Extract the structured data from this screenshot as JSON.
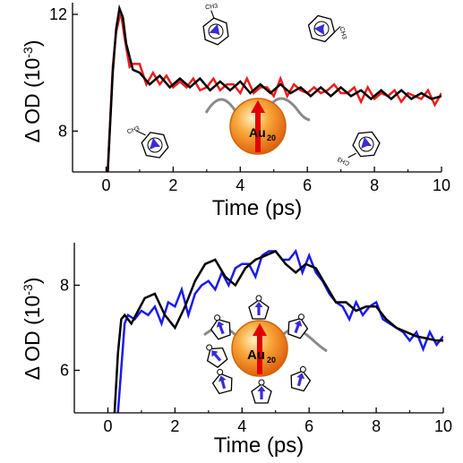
{
  "chart_data": [
    {
      "type": "line",
      "xlabel": "Time (ps)",
      "ylabel": "Δ OD (10",
      "ylabel_exp": "-3",
      "ylabel_close": ")",
      "xlim": [
        -1,
        10
      ],
      "ylim": [
        6.6,
        12.4
      ],
      "xticks": [
        0,
        2,
        4,
        6,
        8,
        10
      ],
      "yticks": [
        8,
        12
      ],
      "grid": false,
      "series": [
        {
          "role": "experiment",
          "color": "#ee1c1c",
          "x": [
            0.05,
            0.2,
            0.3,
            0.4,
            0.45,
            0.55,
            0.7,
            0.8,
            1.0,
            1.2,
            1.4,
            1.6,
            1.8,
            2.0,
            2.2,
            2.4,
            2.6,
            2.8,
            3.0,
            3.2,
            3.4,
            3.6,
            3.8,
            4.0,
            4.2,
            4.4,
            4.6,
            4.8,
            5.0,
            5.2,
            5.4,
            5.6,
            5.8,
            6.0,
            6.2,
            6.4,
            6.6,
            6.8,
            7.0,
            7.2,
            7.4,
            7.6,
            7.8,
            8.0,
            8.2,
            8.4,
            8.6,
            8.8,
            9.0,
            9.2,
            9.4,
            9.6,
            9.8,
            10.0
          ],
          "y": [
            6.6,
            10.2,
            11.4,
            11.9,
            12.0,
            11.2,
            10.2,
            10.3,
            10.3,
            9.6,
            10.0,
            9.6,
            9.9,
            9.5,
            9.7,
            9.5,
            9.8,
            9.4,
            9.5,
            9.8,
            9.4,
            9.6,
            9.6,
            9.3,
            9.8,
            9.3,
            9.5,
            9.5,
            9.2,
            9.8,
            9.2,
            9.6,
            9.4,
            9.3,
            9.5,
            9.3,
            9.4,
            9.6,
            9.3,
            9.3,
            9.5,
            9.0,
            9.5,
            9.1,
            9.3,
            9.2,
            9.4,
            9.0,
            9.3,
            9.2,
            9.1,
            9.4,
            8.9,
            9.3
          ]
        },
        {
          "role": "fit",
          "color": "#000000",
          "x": [
            0.05,
            0.2,
            0.3,
            0.4,
            0.5,
            0.6,
            0.8,
            1.0,
            1.3,
            1.6,
            1.9,
            2.2,
            2.5,
            2.8,
            3.1,
            3.4,
            3.7,
            4.0,
            4.3,
            4.6,
            4.9,
            5.2,
            5.5,
            5.8,
            6.1,
            6.4,
            6.7,
            7.0,
            7.3,
            7.6,
            7.9,
            8.2,
            8.5,
            8.8,
            9.1,
            9.4,
            9.7,
            10.0
          ],
          "y": [
            6.6,
            10.0,
            11.5,
            12.2,
            11.9,
            11.0,
            10.1,
            10.0,
            9.6,
            9.9,
            9.5,
            9.8,
            9.5,
            9.8,
            9.4,
            9.7,
            9.4,
            9.7,
            9.3,
            9.6,
            9.3,
            9.6,
            9.3,
            9.5,
            9.2,
            9.5,
            9.2,
            9.5,
            9.2,
            9.4,
            9.1,
            9.4,
            9.1,
            9.4,
            9.1,
            9.3,
            9.1,
            9.2
          ]
        }
      ],
      "inset": {
        "particle_label": "Au",
        "particle_subscript": "20",
        "ligand_label": "CH3",
        "ligand": "toluene",
        "ligand_count": 4
      }
    },
    {
      "type": "line",
      "xlabel": "Time (ps)",
      "ylabel": "Δ OD (10",
      "ylabel_exp": "-3",
      "ylabel_close": ")",
      "xlim": [
        -1,
        10
      ],
      "ylim": [
        5.0,
        9.0
      ],
      "xticks": [
        0,
        2,
        4,
        6,
        8,
        10
      ],
      "yticks": [
        6,
        8
      ],
      "grid": false,
      "series": [
        {
          "role": "experiment",
          "color": "#1a1aee",
          "x": [
            0.3,
            0.5,
            0.6,
            0.8,
            1.0,
            1.2,
            1.4,
            1.6,
            1.8,
            2.0,
            2.2,
            2.4,
            2.6,
            2.8,
            3.0,
            3.2,
            3.4,
            3.6,
            3.8,
            4.0,
            4.2,
            4.4,
            4.6,
            4.8,
            5.0,
            5.2,
            5.4,
            5.6,
            5.8,
            6.0,
            6.2,
            6.4,
            6.6,
            6.8,
            7.0,
            7.2,
            7.4,
            7.6,
            7.8,
            8.0,
            8.2,
            8.4,
            8.6,
            8.8,
            9.0,
            9.2,
            9.4,
            9.6,
            9.8,
            10.0
          ],
          "y": [
            5.0,
            7.1,
            7.3,
            7.2,
            7.4,
            7.3,
            7.5,
            7.1,
            7.6,
            7.5,
            7.9,
            7.3,
            7.8,
            8.0,
            8.1,
            7.9,
            8.3,
            8.0,
            8.4,
            8.5,
            8.5,
            8.2,
            8.7,
            8.8,
            8.8,
            8.6,
            8.6,
            8.8,
            8.3,
            8.7,
            8.3,
            8.1,
            7.8,
            7.6,
            7.5,
            7.2,
            7.6,
            7.3,
            7.5,
            7.6,
            7.2,
            7.1,
            7.0,
            6.9,
            6.7,
            6.9,
            6.5,
            6.9,
            6.6,
            6.8
          ]
        },
        {
          "role": "fit",
          "color": "#000000",
          "x": [
            0.2,
            0.3,
            0.4,
            0.5,
            0.7,
            0.9,
            1.1,
            1.4,
            1.7,
            2.0,
            2.3,
            2.6,
            2.9,
            3.2,
            3.5,
            3.8,
            4.1,
            4.4,
            4.7,
            5.0,
            5.3,
            5.6,
            5.9,
            6.2,
            6.5,
            6.8,
            7.1,
            7.4,
            7.7,
            8.0,
            8.3,
            8.6,
            8.9,
            9.2,
            9.5,
            9.8,
            10.0
          ],
          "y": [
            5.0,
            6.4,
            7.2,
            7.3,
            7.1,
            7.4,
            7.7,
            7.8,
            7.3,
            7.0,
            7.5,
            8.1,
            8.5,
            8.6,
            8.2,
            8.0,
            8.4,
            8.6,
            8.7,
            8.8,
            8.5,
            8.3,
            8.5,
            8.4,
            8.0,
            7.6,
            7.6,
            7.4,
            7.5,
            7.5,
            7.2,
            7.0,
            6.9,
            6.8,
            6.75,
            6.7,
            6.7
          ]
        }
      ],
      "inset": {
        "particle_label": "Au",
        "particle_subscript": "20",
        "ligand": "furan",
        "ligand_count": 8
      }
    }
  ]
}
